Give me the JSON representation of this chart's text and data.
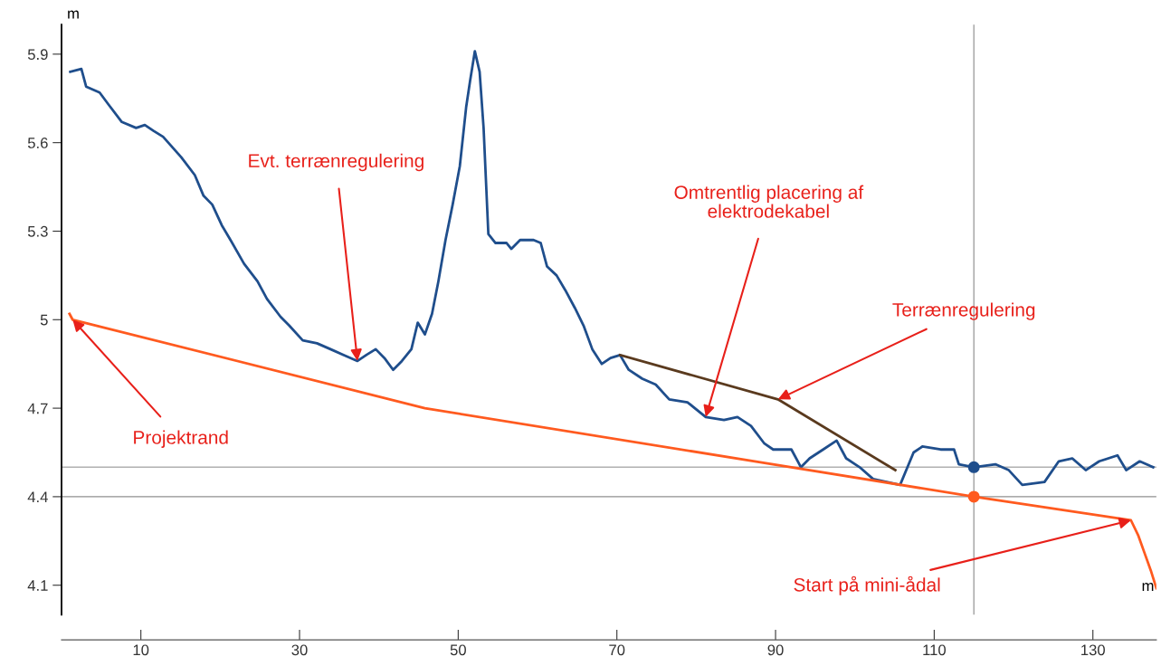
{
  "chart_data": {
    "type": "line",
    "xlabel": "m",
    "ylabel": "m",
    "xlim": [
      0,
      138
    ],
    "xticks": [
      10,
      30,
      50,
      70,
      90,
      110,
      130
    ],
    "ylim": [
      4.0,
      6.0
    ],
    "yticks": [
      4.1,
      4.4,
      4.7,
      5,
      5.3,
      5.6,
      5.9
    ],
    "series": [
      {
        "color": "#1f4e8c",
        "x": [
          1.1,
          2.5,
          3.1,
          4.8,
          5.9,
          7.6,
          9.4,
          10.5,
          11.6,
          12.8,
          15.1,
          16.8,
          17.9,
          19.0,
          20.2,
          21.3,
          23.0,
          24.7,
          25.9,
          27.6,
          28.7,
          30.4,
          32.2,
          33.9,
          35.6,
          37.3,
          38.4,
          39.6,
          40.7,
          41.8,
          42.9,
          44.1,
          44.9,
          45.8,
          46.7,
          47.5,
          48.4,
          49.3,
          50.2,
          51.0,
          51.5,
          52.1,
          52.7,
          53.2,
          53.8,
          54.7,
          56.1,
          56.7,
          57.8,
          59.5,
          60.4,
          61.2,
          62.4,
          63.5,
          64.7,
          65.8,
          66.9,
          68.1,
          69.2,
          70.4,
          71.5,
          73.2,
          74.9,
          76.6,
          78.9,
          81.2,
          83.5,
          85.2,
          86.9,
          88.6,
          89.7,
          92.0,
          93.2,
          94.3,
          96.0,
          97.7,
          98.9,
          100.6,
          102.3,
          104.0,
          105.7,
          107.4,
          108.5,
          110.8,
          112.5,
          113.1,
          115,
          117.7,
          119.4,
          121.1,
          123.9,
          125.7,
          127.4,
          129.1,
          130.8,
          133.1,
          134.2,
          135.9,
          137.6
        ],
        "values": [
          5.84,
          5.85,
          5.79,
          5.77,
          5.73,
          5.67,
          5.65,
          5.66,
          5.64,
          5.62,
          5.55,
          5.49,
          5.42,
          5.39,
          5.32,
          5.27,
          5.19,
          5.13,
          5.07,
          5.01,
          4.98,
          4.93,
          4.92,
          4.9,
          4.88,
          4.86,
          4.88,
          4.9,
          4.87,
          4.83,
          4.86,
          4.9,
          4.99,
          4.95,
          5.02,
          5.13,
          5.27,
          5.39,
          5.52,
          5.72,
          5.81,
          5.91,
          5.84,
          5.65,
          5.29,
          5.26,
          5.26,
          5.24,
          5.27,
          5.27,
          5.26,
          5.18,
          5.15,
          5.1,
          5.04,
          4.98,
          4.9,
          4.85,
          4.87,
          4.88,
          4.83,
          4.8,
          4.78,
          4.73,
          4.72,
          4.67,
          4.66,
          4.67,
          4.64,
          4.58,
          4.56,
          4.56,
          4.5,
          4.53,
          4.56,
          4.59,
          4.53,
          4.5,
          4.46,
          4.45,
          4.44,
          4.55,
          4.57,
          4.56,
          4.56,
          4.51,
          4.5,
          4.51,
          4.49,
          4.44,
          4.45,
          4.52,
          4.53,
          4.49,
          4.52,
          4.54,
          4.49,
          4.52,
          4.5
        ]
      },
      {
        "color": "#ff5a1f",
        "x": [
          1.0,
          1.4,
          45.8,
          115,
          134.8,
          135.7,
          136.5,
          137.3,
          138
        ],
        "values": [
          5.02,
          5.0,
          4.7,
          4.4,
          4.32,
          4.27,
          4.21,
          4.15,
          4.09
        ]
      },
      {
        "color": "#5a3a1e",
        "x": [
          70.4,
          90.3,
          105.1
        ],
        "values": [
          4.88,
          4.73,
          4.49
        ]
      },
      {
        "type": "scatter",
        "color": "#1f4e8c",
        "x": [
          115
        ],
        "values": [
          4.5
        ]
      },
      {
        "type": "scatter",
        "color": "#ff5a1f",
        "x": [
          115
        ],
        "values": [
          4.4
        ]
      }
    ],
    "ref_lines": [
      {
        "axis": "y",
        "value": 4.5,
        "color": "#b0b0b0"
      },
      {
        "axis": "y",
        "value": 4.4,
        "color": "#909090"
      },
      {
        "axis": "x",
        "value": 115,
        "color": "#a0a0a0"
      }
    ],
    "annotations": [
      {
        "text": "Evt. terrænregulering",
        "x": 37.3,
        "y": 4.86
      },
      {
        "text": "Omtrentlig placering af\nelektrodekabel",
        "x": 81.2,
        "y": 4.67
      },
      {
        "text": "Terrænregulering",
        "x": 90.3,
        "y": 4.73
      },
      {
        "text": "Projektrand",
        "x": 1.4,
        "y": 5.0
      },
      {
        "text": "Start på mini-ådal",
        "x": 134.8,
        "y": 4.32
      }
    ]
  }
}
